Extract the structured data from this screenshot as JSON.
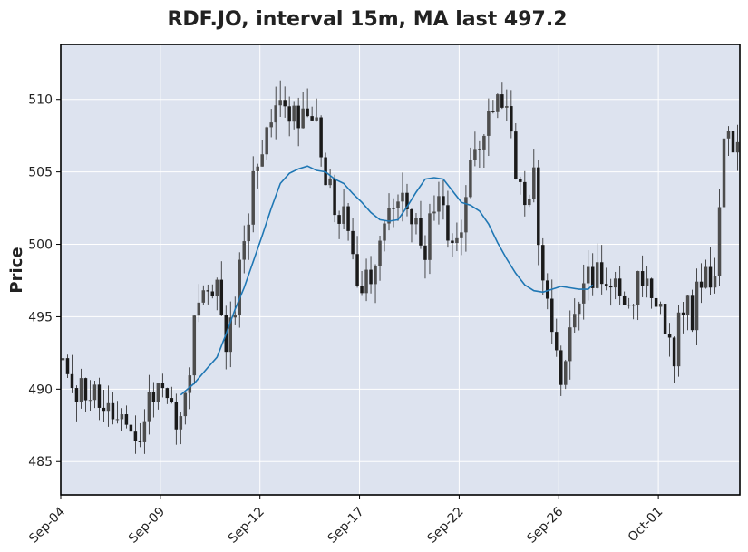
{
  "chart_data": {
    "type": "candlestick",
    "title": "RDF.JO, interval 15m, MA last 497.2",
    "xlabel": "",
    "ylabel": "Price",
    "ylim": [
      482.7,
      513.8
    ],
    "x_tick_labels": [
      "Sep-04",
      "Sep-09",
      "Sep-12",
      "Sep-17",
      "Sep-22",
      "Sep-26",
      "Oct-01"
    ],
    "y_ticks": [
      485,
      490,
      495,
      500,
      505,
      510
    ],
    "grid": true,
    "colors": {
      "plot_background": "#dde3ef",
      "grid": "#ffffff",
      "candle_body": "#4d4d4d",
      "candle_wick": "#222222",
      "ma_line": "#1f77b4"
    },
    "price_path": [
      [
        0,
        492
      ],
      [
        2,
        489
      ],
      [
        5,
        490
      ],
      [
        8,
        489
      ],
      [
        10,
        488
      ],
      [
        12,
        488.5
      ],
      [
        14,
        487
      ],
      [
        16,
        486
      ],
      [
        18,
        488.5
      ],
      [
        20,
        489
      ],
      [
        22,
        490
      ],
      [
        24,
        489
      ],
      [
        25,
        488
      ],
      [
        27,
        490
      ],
      [
        30,
        496
      ],
      [
        32,
        497
      ],
      [
        34,
        496.5
      ],
      [
        36,
        493
      ],
      [
        37,
        494
      ],
      [
        39,
        498
      ],
      [
        41,
        502
      ],
      [
        42,
        504
      ],
      [
        44,
        507
      ],
      [
        46,
        508
      ],
      [
        48,
        509.5
      ],
      [
        50,
        509
      ],
      [
        52,
        508.5
      ],
      [
        54,
        509
      ],
      [
        56,
        508
      ],
      [
        58,
        505
      ],
      [
        60,
        503
      ],
      [
        62,
        502
      ],
      [
        63,
        500
      ],
      [
        65,
        497
      ],
      [
        67,
        497.5
      ],
      [
        70,
        500
      ],
      [
        72,
        503
      ],
      [
        74,
        504
      ],
      [
        76,
        503.5
      ],
      [
        78,
        501
      ],
      [
        80,
        499.5
      ],
      [
        82,
        503
      ],
      [
        84,
        502
      ],
      [
        86,
        500
      ],
      [
        88,
        501
      ],
      [
        90,
        505
      ],
      [
        92,
        506
      ],
      [
        94,
        509
      ],
      [
        96,
        510
      ],
      [
        98,
        509
      ],
      [
        100,
        505
      ],
      [
        102,
        503.5
      ],
      [
        104,
        504.5
      ],
      [
        105,
        500
      ],
      [
        107,
        496
      ],
      [
        109,
        492
      ],
      [
        110,
        491
      ],
      [
        112,
        494
      ],
      [
        114,
        497
      ],
      [
        116,
        498
      ],
      [
        118,
        498
      ],
      [
        120,
        497
      ],
      [
        122,
        497.5
      ],
      [
        124,
        496
      ],
      [
        126,
        496.5
      ],
      [
        128,
        498
      ],
      [
        130,
        497
      ],
      [
        132,
        496
      ],
      [
        133,
        493
      ],
      [
        135,
        492.5
      ],
      [
        137,
        496
      ],
      [
        139,
        495
      ],
      [
        140,
        497
      ],
      [
        142,
        498
      ],
      [
        144,
        497
      ],
      [
        146,
        507
      ]
    ],
    "ma_line": [
      [
        26,
        489.6
      ],
      [
        29,
        490.4
      ],
      [
        32,
        491.5
      ],
      [
        34,
        492.2
      ],
      [
        36,
        493.8
      ],
      [
        38,
        495.5
      ],
      [
        40,
        497
      ],
      [
        42,
        498.8
      ],
      [
        44,
        500.6
      ],
      [
        46,
        502.5
      ],
      [
        48,
        504.2
      ],
      [
        50,
        504.9
      ],
      [
        52,
        505.2
      ],
      [
        54,
        505.4
      ],
      [
        56,
        505.1
      ],
      [
        58,
        505
      ],
      [
        60,
        504.5
      ],
      [
        62,
        504.2
      ],
      [
        64,
        503.5
      ],
      [
        66,
        502.9
      ],
      [
        68,
        502.2
      ],
      [
        70,
        501.7
      ],
      [
        72,
        501.6
      ],
      [
        74,
        501.7
      ],
      [
        76,
        502.6
      ],
      [
        78,
        503.6
      ],
      [
        80,
        504.5
      ],
      [
        82,
        504.6
      ],
      [
        84,
        504.5
      ],
      [
        86,
        503.7
      ],
      [
        88,
        502.9
      ],
      [
        90,
        502.7
      ],
      [
        92,
        502.3
      ],
      [
        94,
        501.4
      ],
      [
        96,
        500.1
      ],
      [
        98,
        499
      ],
      [
        100,
        498
      ],
      [
        102,
        497.2
      ],
      [
        104,
        496.8
      ],
      [
        106,
        496.7
      ],
      [
        108,
        496.9
      ],
      [
        110,
        497.1
      ],
      [
        112,
        497
      ],
      [
        114,
        496.9
      ],
      [
        116,
        496.9
      ],
      [
        117,
        497.2
      ]
    ]
  }
}
